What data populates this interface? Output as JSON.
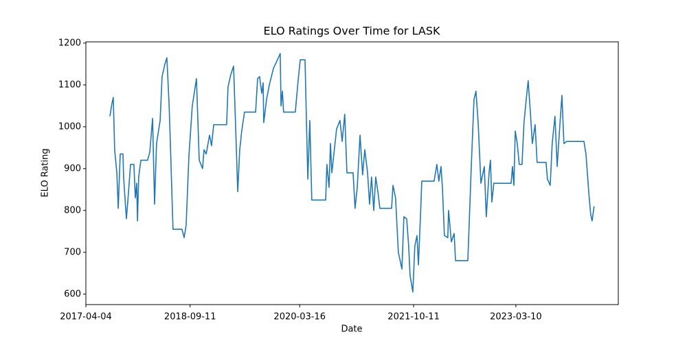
{
  "chart_data": {
    "type": "line",
    "title": "ELO Ratings Over Time for LASK",
    "x_label": "Date",
    "y_label": "ELO Rating",
    "x": [
      "2017-08-03",
      "2017-08-13",
      "2017-08-20",
      "2017-08-27",
      "2017-09-07",
      "2017-09-14",
      "2017-09-24",
      "2017-10-08",
      "2017-10-11",
      "2017-10-25",
      "2017-11-01",
      "2017-11-15",
      "2017-12-02",
      "2017-12-09",
      "2017-12-16",
      "2017-12-20",
      "2017-12-26",
      "2018-01-06",
      "2018-02-09",
      "2018-02-20",
      "2018-03-06",
      "2018-03-16",
      "2018-03-26",
      "2018-04-13",
      "2018-04-23",
      "2018-05-07",
      "2018-05-17",
      "2018-05-28",
      "2018-06-04",
      "2018-06-11",
      "2018-06-17",
      "2018-08-01",
      "2018-08-12",
      "2018-08-22",
      "2018-09-05",
      "2018-09-22",
      "2018-10-13",
      "2018-10-27",
      "2018-11-13",
      "2018-11-20",
      "2018-12-01",
      "2018-12-18",
      "2018-12-28",
      "2019-01-08",
      "2019-03-14",
      "2019-03-21",
      "2019-04-04",
      "2019-04-18",
      "2019-04-28",
      "2019-05-09",
      "2019-05-19",
      "2019-05-29",
      "2019-06-12",
      "2019-08-07",
      "2019-08-17",
      "2019-08-27",
      "2019-09-07",
      "2019-09-14",
      "2019-09-17",
      "2019-10-01",
      "2019-10-15",
      "2019-11-05",
      "2019-11-25",
      "2019-12-09",
      "2019-12-13",
      "2019-12-20",
      "2019-12-26",
      "2020-02-23",
      "2020-03-08",
      "2020-03-19",
      "2020-04-12",
      "2020-04-19",
      "2020-04-26",
      "2020-05-06",
      "2020-05-16",
      "2020-07-25",
      "2020-07-31",
      "2020-08-11",
      "2020-08-18",
      "2020-08-25",
      "2020-09-18",
      "2020-10-05",
      "2020-10-16",
      "2020-10-29",
      "2020-11-09",
      "2020-12-10",
      "2020-12-20",
      "2020-12-31",
      "2021-01-14",
      "2021-01-27",
      "2021-02-07",
      "2021-02-21",
      "2021-03-03",
      "2021-03-13",
      "2021-03-24",
      "2021-04-03",
      "2021-04-14",
      "2021-04-24",
      "2021-06-22",
      "2021-06-29",
      "2021-07-12",
      "2021-07-26",
      "2021-08-13",
      "2021-08-23",
      "2021-09-06",
      "2021-09-16",
      "2021-09-23",
      "2021-10-07",
      "2021-10-17",
      "2021-10-28",
      "2021-11-04",
      "2021-11-14",
      "2021-11-21",
      "2022-01-22",
      "2022-02-05",
      "2022-02-15",
      "2022-02-26",
      "2022-03-05",
      "2022-03-15",
      "2022-04-01",
      "2022-04-05",
      "2022-04-19",
      "2022-05-03",
      "2022-05-10",
      "2022-07-11",
      "2022-07-18",
      "2022-07-28",
      "2022-08-11",
      "2022-08-21",
      "2022-09-01",
      "2022-09-15",
      "2022-10-02",
      "2022-10-12",
      "2022-10-26",
      "2022-11-02",
      "2022-11-09",
      "2022-11-19",
      "2023-02-14",
      "2023-02-21",
      "2023-02-28",
      "2023-03-07",
      "2023-03-17",
      "2023-03-27",
      "2023-04-10",
      "2023-04-20",
      "2023-05-01",
      "2023-05-11",
      "2023-05-22",
      "2023-06-01",
      "2023-06-15",
      "2023-06-25",
      "2023-08-09",
      "2023-08-16",
      "2023-08-30",
      "2023-09-09",
      "2023-09-23",
      "2023-10-04",
      "2023-10-17",
      "2023-10-28",
      "2023-11-07",
      "2023-11-21",
      "2024-02-16",
      "2024-02-26",
      "2024-03-11",
      "2024-03-21",
      "2024-03-28",
      "2024-04-07"
    ],
    "series": [
      {
        "color": "#1f77b4",
        "values": [
          1025,
          1055,
          1070,
          945,
          890,
          805,
          935,
          935,
          880,
          780,
          820,
          910,
          910,
          830,
          865,
          775,
          880,
          920,
          920,
          940,
          1020,
          815,
          960,
          1015,
          1120,
          1150,
          1165,
          1055,
          955,
          845,
          755,
          755,
          735,
          765,
          930,
          1050,
          1115,
          920,
          900,
          945,
          935,
          980,
          955,
          1005,
          1005,
          1095,
          1125,
          1145,
          1005,
          845,
          945,
          990,
          1035,
          1035,
          1115,
          1120,
          1080,
          1105,
          1010,
          1065,
          1100,
          1140,
          1160,
          1175,
          1050,
          1085,
          1035,
          1035,
          1110,
          1160,
          1160,
          1015,
          875,
          1015,
          825,
          825,
          910,
          855,
          960,
          890,
          995,
          1015,
          965,
          1030,
          890,
          890,
          805,
          855,
          980,
          885,
          945,
          890,
          815,
          880,
          800,
          880,
          845,
          805,
          805,
          860,
          830,
          700,
          660,
          785,
          780,
          715,
          645,
          605,
          715,
          740,
          670,
          780,
          870,
          870,
          910,
          870,
          905,
          855,
          740,
          735,
          800,
          725,
          745,
          680,
          680,
          770,
          900,
          1065,
          1085,
          1010,
          865,
          905,
          785,
          890,
          920,
          820,
          865,
          865,
          905,
          860,
          990,
          960,
          910,
          910,
          1010,
          1065,
          1110,
          1035,
          960,
          1005,
          915,
          915,
          875,
          860,
          960,
          1025,
          905,
          1000,
          1075,
          960,
          965,
          965,
          935,
          845,
          790,
          775,
          810
        ]
      }
    ],
    "xlim": [
      "2017-04-04",
      "2024-08-07"
    ],
    "xticks": [
      "2017-04-04",
      "2018-09-11",
      "2020-03-16",
      "2021-10-11",
      "2023-03-10"
    ],
    "ylim": [
      575,
      1203
    ],
    "yticks": [
      600,
      700,
      800,
      900,
      1000,
      1100,
      1200
    ]
  }
}
